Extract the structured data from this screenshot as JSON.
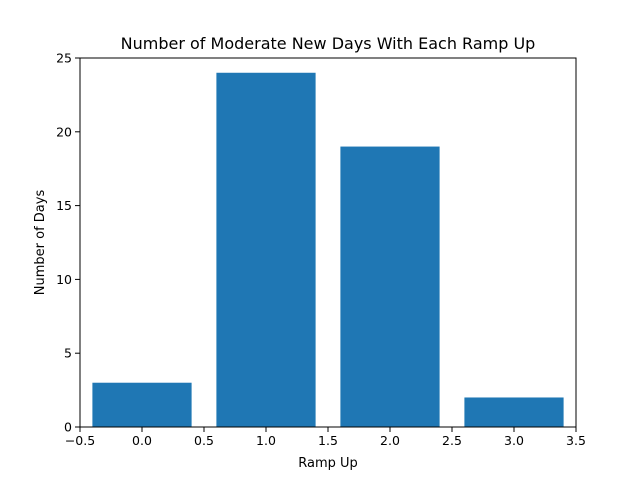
{
  "chart_data": {
    "type": "bar",
    "title": "Number of Moderate New Days With Each Ramp Up",
    "xlabel": "Ramp Up",
    "ylabel": "Number of Days",
    "bar_color": "#1f77b4",
    "x": [
      0,
      1,
      2,
      3
    ],
    "values": [
      3,
      24,
      19,
      2
    ],
    "bar_width": 0.8,
    "xlim": [
      -0.5,
      3.5
    ],
    "ylim": [
      0,
      25
    ],
    "xticks": [
      -0.5,
      0.0,
      0.5,
      1.0,
      1.5,
      2.0,
      2.5,
      3.0,
      3.5
    ],
    "xtick_labels": [
      "−0.5",
      "0.0",
      "0.5",
      "1.0",
      "1.5",
      "2.0",
      "2.5",
      "3.0",
      "3.5"
    ],
    "yticks": [
      0,
      5,
      10,
      15,
      20,
      25
    ],
    "ytick_labels": [
      "0",
      "5",
      "10",
      "15",
      "20",
      "25"
    ],
    "grid": false,
    "legend": false
  }
}
